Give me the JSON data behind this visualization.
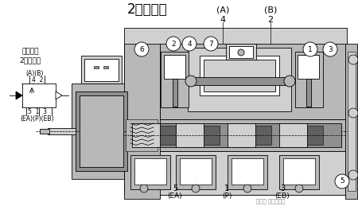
{
  "title": "2位单电控",
  "white": "#ffffff",
  "gray_bg": "#e8e8e8",
  "gray1": "#d0d0d0",
  "gray2": "#b8b8b8",
  "gray3": "#909090",
  "gray4": "#606060",
  "black": "#000000",
  "symbol_label1": "图形符号",
  "symbol_label2": "2位单电控",
  "watermark": "头条号 工控自动化",
  "font_title": 12,
  "font_label": 7,
  "font_small": 6,
  "lw": 0.6
}
